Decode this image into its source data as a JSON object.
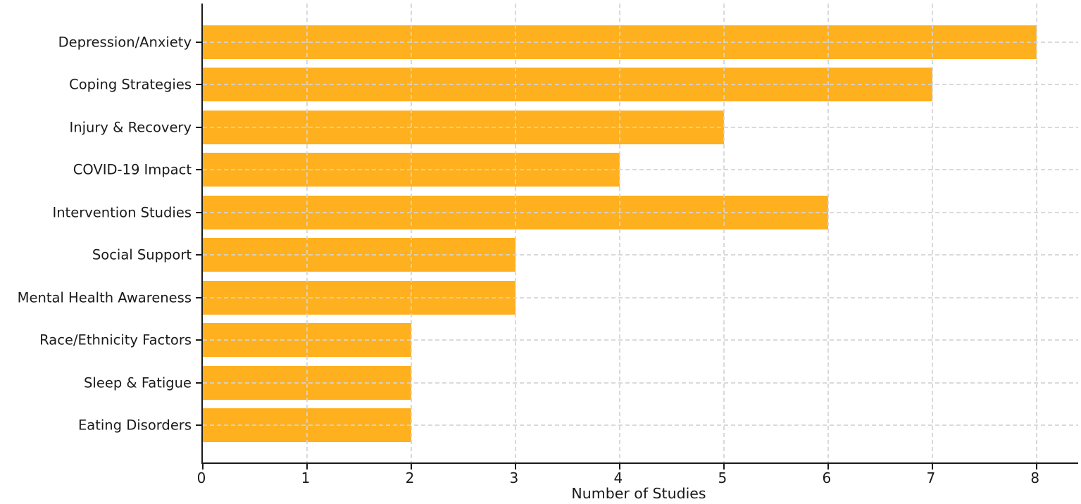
{
  "chart_data": {
    "type": "bar",
    "orientation": "horizontal",
    "xlabel": "Number of Studies",
    "categories": [
      "Depression/Anxiety",
      "Coping Strategies",
      "Injury & Recovery",
      "COVID-19 Impact",
      "Intervention Studies",
      "Social Support",
      "Mental Health Awareness",
      "Race/Ethnicity Factors",
      "Sleep & Fatigue",
      "Eating Disorders"
    ],
    "values": [
      8,
      7,
      5,
      4,
      6,
      3,
      3,
      2,
      2,
      2
    ],
    "xticks": [
      0,
      1,
      2,
      3,
      4,
      5,
      6,
      7,
      8
    ],
    "xlim": [
      0,
      8.4
    ],
    "bar_color": "#ffb01e",
    "grid": {
      "visible": true,
      "style": "dashed",
      "color": "#d4d4d4",
      "over_bars": true
    },
    "spines": {
      "left": true,
      "bottom": true,
      "top": false,
      "right": false,
      "color": "#1a1a1a"
    }
  }
}
